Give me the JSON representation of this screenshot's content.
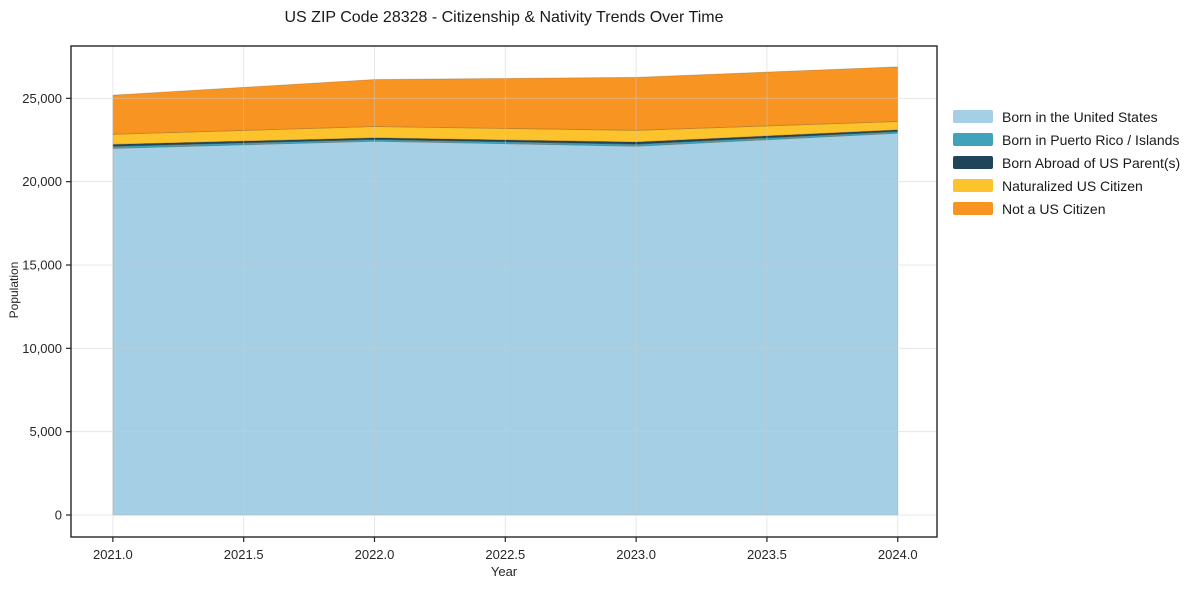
{
  "figure": {
    "background": "#ffffff"
  },
  "chart_data": {
    "type": "area",
    "stacked": true,
    "title": "US ZIP Code 28328 - Citizenship & Nativity Trends Over Time",
    "xlabel": "Year",
    "ylabel": "Population",
    "x": [
      2021,
      2022,
      2023,
      2024
    ],
    "series": [
      {
        "name": "Born in the United States",
        "color": "#a5cfe4",
        "values": [
          22000,
          22430,
          22130,
          22910
        ]
      },
      {
        "name": "Born in Puerto Rico / Islands",
        "color": "#41a3b9",
        "values": [
          120,
          100,
          120,
          100
        ]
      },
      {
        "name": "Born Abroad of US Parent(s)",
        "color": "#20455a",
        "values": [
          120,
          100,
          130,
          100
        ]
      },
      {
        "name": "Naturalized US Citizen",
        "color": "#fcc32d",
        "values": [
          600,
          680,
          700,
          500
        ]
      },
      {
        "name": "Not a US Citizen",
        "color": "#f89522",
        "values": [
          2350,
          2820,
          3180,
          3280
        ]
      }
    ],
    "xticks": [
      2021.0,
      2021.5,
      2022.0,
      2022.5,
      2023.0,
      2023.5,
      2024.0
    ],
    "xtick_labels": [
      "2021.0",
      "2021.5",
      "2022.0",
      "2022.5",
      "2023.0",
      "2023.5",
      "2024.0"
    ],
    "yticks": [
      0,
      5000,
      10000,
      15000,
      20000,
      25000
    ],
    "ytick_labels": [
      "0",
      "5,000",
      "10,000",
      "15,000",
      "20,000",
      "25,000"
    ],
    "xlim": [
      2020.84,
      2024.15
    ],
    "ylim": [
      -1320,
      28140
    ],
    "grid": true,
    "legend_position": "right-outside",
    "colors": {
      "axis": "#262626",
      "grid": "#cccccc",
      "text": "#1a1a1a"
    }
  }
}
